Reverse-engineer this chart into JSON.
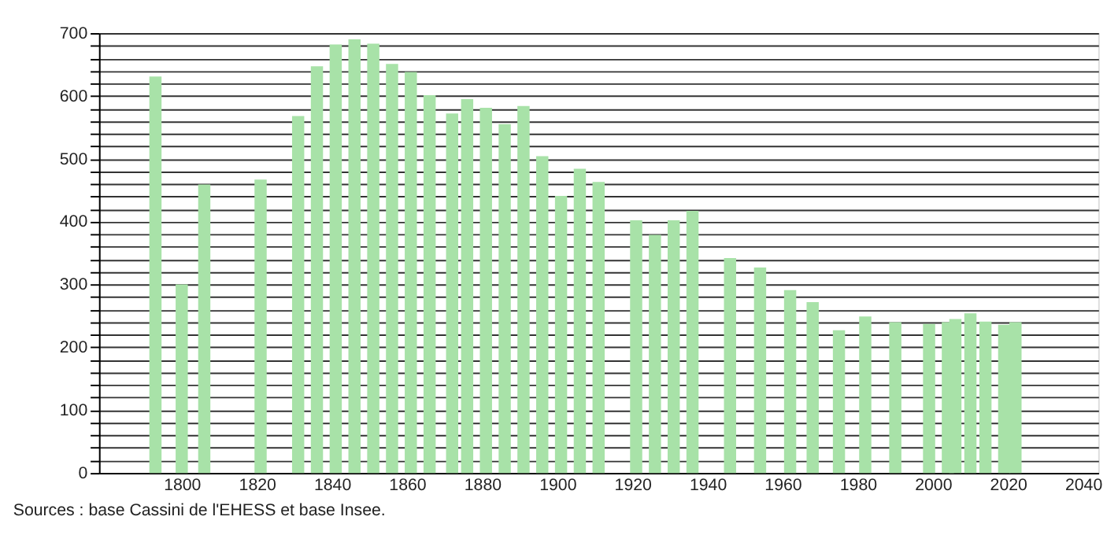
{
  "chart_data": {
    "type": "bar",
    "x": [
      1793,
      1800,
      1806,
      1821,
      1831,
      1836,
      1841,
      1846,
      1851,
      1856,
      1861,
      1866,
      1872,
      1876,
      1881,
      1886,
      1891,
      1896,
      1901,
      1906,
      1911,
      1921,
      1926,
      1931,
      1936,
      1946,
      1954,
      1962,
      1968,
      1975,
      1982,
      1990,
      1999,
      2004,
      2006,
      2010,
      2014,
      2019,
      2022
    ],
    "values": [
      631,
      300,
      459,
      467,
      568,
      647,
      682,
      690,
      683,
      651,
      638,
      601,
      572,
      595,
      581,
      555,
      584,
      504,
      441,
      484,
      463,
      402,
      379,
      402,
      417,
      342,
      327,
      291,
      272,
      227,
      249,
      240,
      237,
      240,
      245,
      254,
      241,
      236,
      240
    ],
    "color": "#a8e2a8",
    "xlim": [
      1780,
      2042
    ],
    "xticks": [
      1800,
      1820,
      1840,
      1860,
      1880,
      1900,
      1920,
      1940,
      1960,
      1980,
      2000,
      2020,
      2040
    ],
    "ylim": [
      0,
      700
    ],
    "yticks": [
      0,
      {
        "value": 20,
        "label": null
      },
      {
        "value": 40,
        "label": null
      },
      {
        "value": 60,
        "label": null
      },
      {
        "value": 80,
        "label": null
      },
      100,
      {
        "value": 120,
        "label": null
      },
      {
        "value": 140,
        "label": null
      },
      {
        "value": 160,
        "label": null
      },
      {
        "value": 180,
        "label": null
      },
      200,
      {
        "value": 220,
        "label": null
      },
      {
        "value": 240,
        "label": null
      },
      {
        "value": 260,
        "label": null
      },
      {
        "value": 280,
        "label": null
      },
      300,
      {
        "value": 320,
        "label": null
      },
      {
        "value": 340,
        "label": null
      },
      {
        "value": 360,
        "label": null
      },
      {
        "value": 380,
        "label": null
      },
      400,
      {
        "value": 420,
        "label": null
      },
      {
        "value": 440,
        "label": null
      },
      {
        "value": 460,
        "label": null
      },
      {
        "value": 480,
        "label": null
      },
      500,
      {
        "value": 520,
        "label": null
      },
      {
        "value": 540,
        "label": null
      },
      {
        "value": 560,
        "label": null
      },
      {
        "value": 580,
        "label": null
      },
      600,
      {
        "value": 620,
        "label": null
      },
      {
        "value": 640,
        "label": null
      },
      {
        "value": 660,
        "label": null
      },
      {
        "value": 680,
        "label": null
      },
      700
    ],
    "grid": "y",
    "annotations": [
      "Sources : base Cassini de l'EHESS et base Insee."
    ]
  }
}
